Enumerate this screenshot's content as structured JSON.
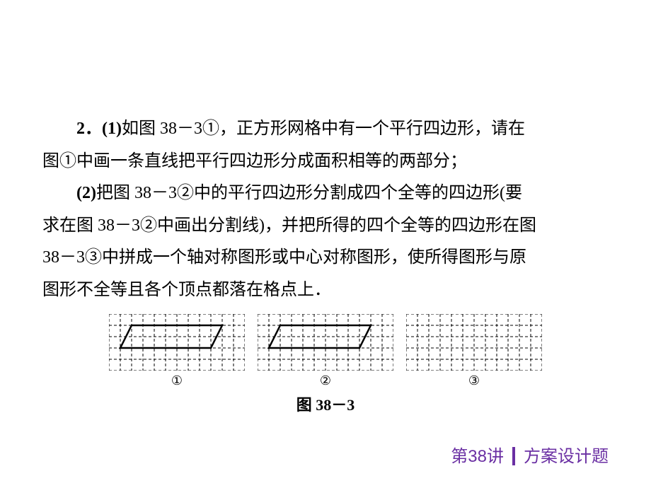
{
  "text": {
    "p1_lead": "2．(1)",
    "p1_a": "如图 38－3①，正方形网格中有一个平行四边形，请在",
    "p1_b": "图①中画一条直线把平行四边形分成面积相等的两部分；",
    "p2_lead": "(2)",
    "p2_a": "把图 38－3②中的平行四边形分割成四个全等的四边形(要",
    "p2_b": "求在图 38－3②中画出分割线)，并把所得的四个全等的四边形在图",
    "p2_c": "38－3③中拼成一个轴对称图形或中心对称图形，使所得图形与原",
    "p2_d": "图形不全等且各个顶点都落在格点上．"
  },
  "figures": {
    "label1": "①",
    "label2": "②",
    "label3": "③",
    "caption": "图 38－3"
  },
  "grid": {
    "cols": 12,
    "rows": 5,
    "cell": 16,
    "grid_color": "#000000",
    "grid_stroke_width": 1,
    "grid_dash": "4 3",
    "background_color": "#ffffff",
    "parallelogram": {
      "points": [
        [
          1,
          2
        ],
        [
          2,
          0
        ],
        [
          10,
          0
        ],
        [
          9,
          2
        ]
      ],
      "stroke": "#000000",
      "stroke_width": 2.5,
      "show_in": [
        1,
        2
      ]
    },
    "third_empty": true
  },
  "footer": {
    "left": "第38讲",
    "right": "方案设计题",
    "color": "#6a2fa3",
    "fontsize": 24
  }
}
